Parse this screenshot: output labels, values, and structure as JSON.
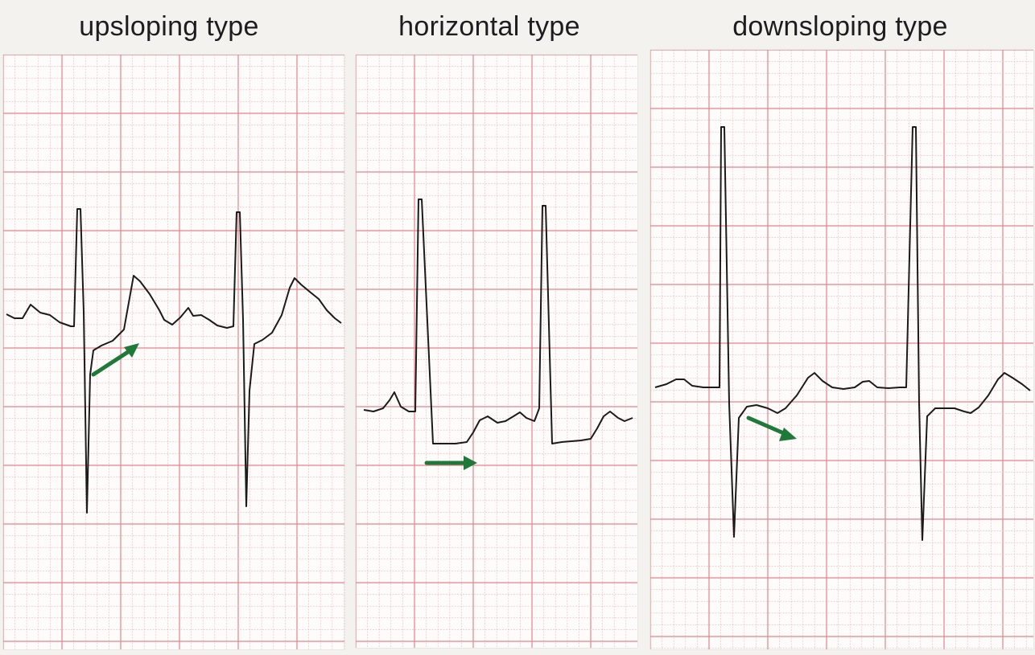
{
  "panels": [
    {
      "id": "upsloping",
      "title": "upsloping type",
      "arrow_direction": "up-right"
    },
    {
      "id": "horizontal",
      "title": "horizontal type",
      "arrow_direction": "right"
    },
    {
      "id": "downsloping",
      "title": "downsloping type",
      "arrow_direction": "down-right"
    }
  ],
  "colors": {
    "grid_major": "#e5838a",
    "grid_minor": "#f1b7bb",
    "trace": "#1b1b1b",
    "arrow": "#1f7a3a"
  }
}
